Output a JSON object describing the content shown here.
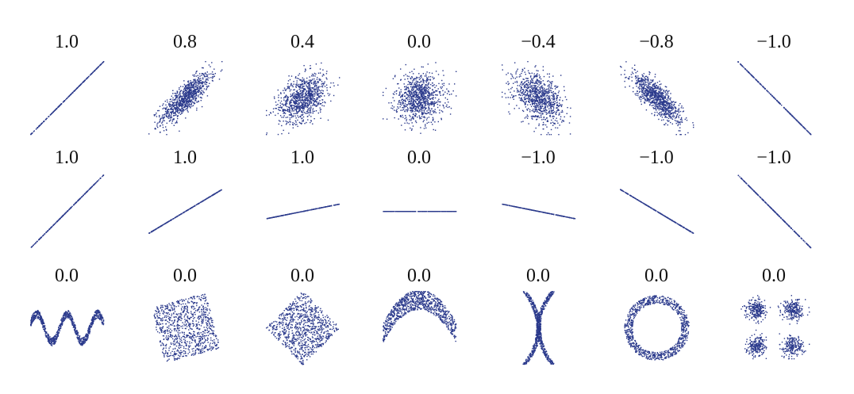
{
  "chart_data": [
    {
      "type": "scatter",
      "title": "1.0",
      "shape": "line",
      "correlation": 1.0
    },
    {
      "type": "scatter",
      "title": "0.8",
      "shape": "gaussian-cloud",
      "correlation": 0.8
    },
    {
      "type": "scatter",
      "title": "0.4",
      "shape": "gaussian-cloud",
      "correlation": 0.4
    },
    {
      "type": "scatter",
      "title": "0.0",
      "shape": "gaussian-cloud",
      "correlation": 0.0
    },
    {
      "type": "scatter",
      "title": "−0.4",
      "shape": "gaussian-cloud",
      "correlation": -0.4
    },
    {
      "type": "scatter",
      "title": "−0.8",
      "shape": "gaussian-cloud",
      "correlation": -0.8
    },
    {
      "type": "scatter",
      "title": "−1.0",
      "shape": "line",
      "correlation": -1.0
    },
    {
      "type": "scatter",
      "title": "1.0",
      "shape": "line",
      "correlation": 1.0,
      "slope": 1.0
    },
    {
      "type": "scatter",
      "title": "1.0",
      "shape": "line",
      "correlation": 1.0,
      "slope": 0.6
    },
    {
      "type": "scatter",
      "title": "1.0",
      "shape": "line",
      "correlation": 1.0,
      "slope": 0.2
    },
    {
      "type": "scatter",
      "title": "0.0",
      "shape": "line",
      "correlation": 0.0,
      "slope": 0.0
    },
    {
      "type": "scatter",
      "title": "−1.0",
      "shape": "line",
      "correlation": -1.0,
      "slope": -0.2
    },
    {
      "type": "scatter",
      "title": "−1.0",
      "shape": "line",
      "correlation": -1.0,
      "slope": -0.6
    },
    {
      "type": "scatter",
      "title": "−1.0",
      "shape": "line",
      "correlation": -1.0,
      "slope": -1.0
    },
    {
      "type": "scatter",
      "title": "0.0",
      "shape": "wave",
      "correlation": 0.0
    },
    {
      "type": "scatter",
      "title": "0.0",
      "shape": "rotated-square",
      "correlation": 0.0
    },
    {
      "type": "scatter",
      "title": "0.0",
      "shape": "diamond",
      "correlation": 0.0
    },
    {
      "type": "scatter",
      "title": "0.0",
      "shape": "parabola",
      "correlation": 0.0
    },
    {
      "type": "scatter",
      "title": "0.0",
      "shape": "x-cross",
      "correlation": 0.0
    },
    {
      "type": "scatter",
      "title": "0.0",
      "shape": "ring",
      "correlation": 0.0
    },
    {
      "type": "scatter",
      "title": "0.0",
      "shape": "four-clusters",
      "correlation": 0.0
    }
  ],
  "colors": {
    "points": "#2b3a8c",
    "labels": "#111111",
    "background": "#ffffff"
  }
}
